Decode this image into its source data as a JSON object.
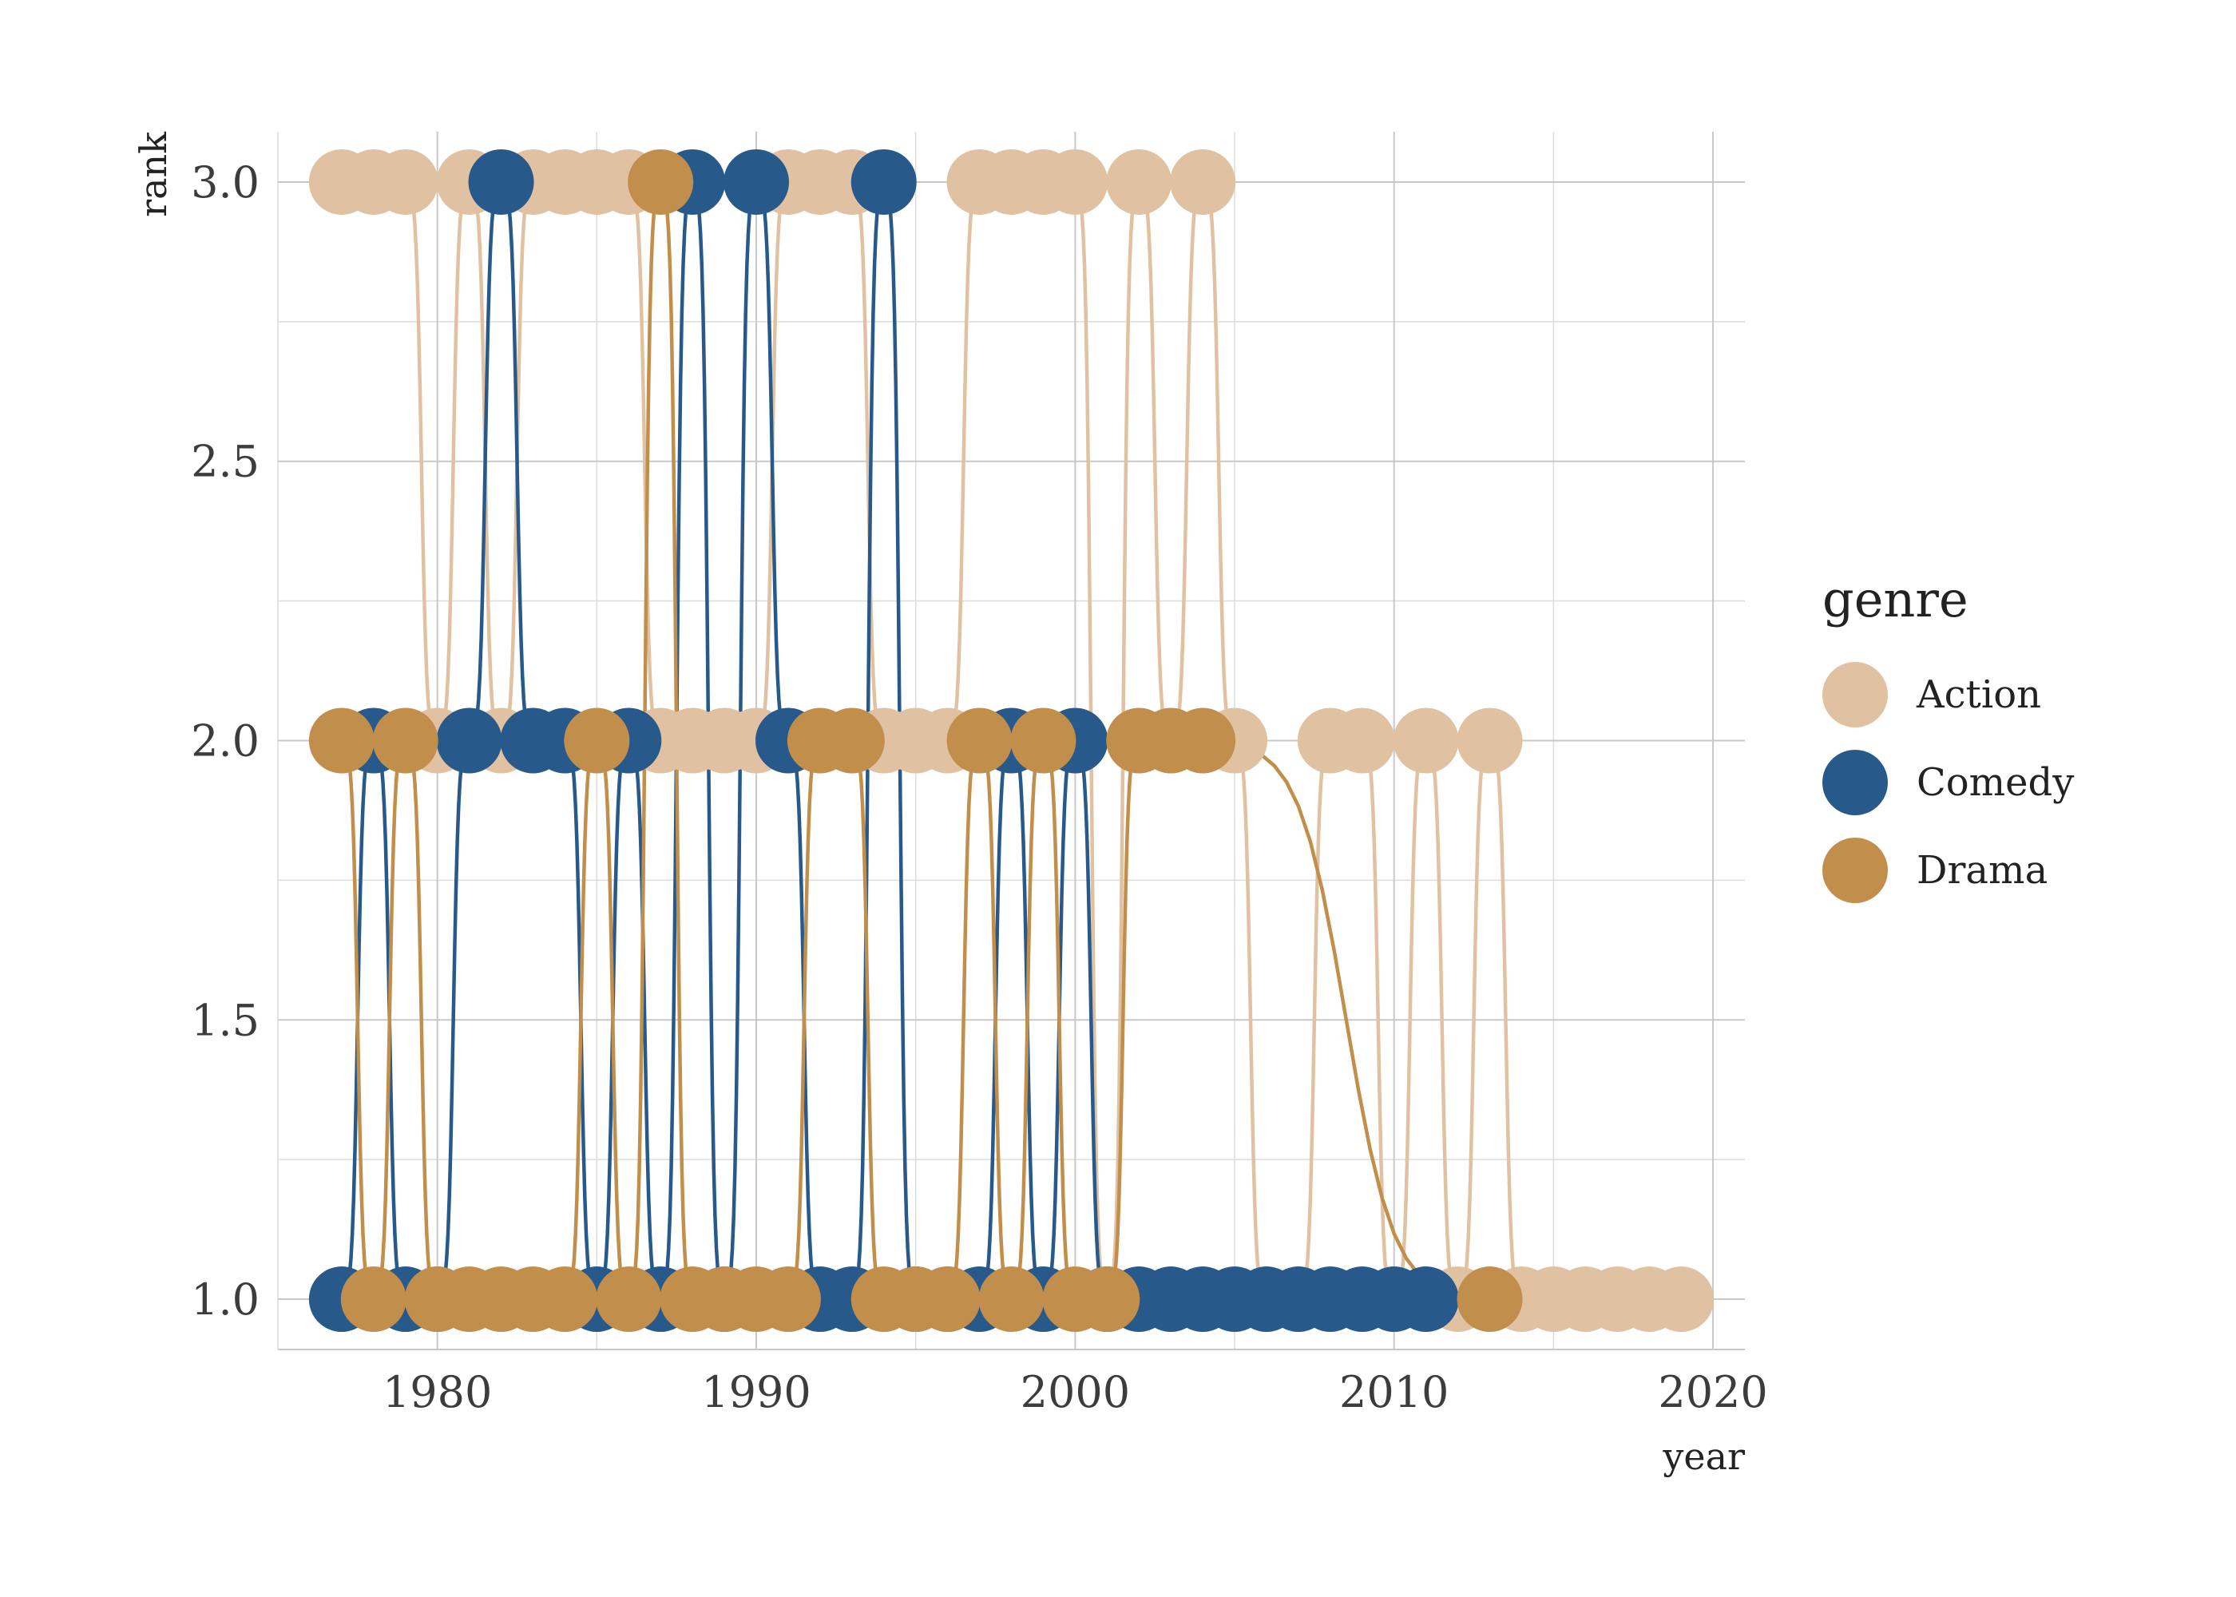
{
  "chart_data": {
    "type": "line",
    "xlabel": "year",
    "ylabel": "rank",
    "xlim": [
      1975,
      2021
    ],
    "ylim": [
      0.91,
      3.09
    ],
    "x_ticks": [
      1980,
      1990,
      2000,
      2010,
      2020
    ],
    "y_ticks": [
      1.0,
      1.5,
      2.0,
      2.5,
      3.0
    ],
    "x_tick_labels": [
      "1980",
      "1990",
      "2000",
      "2010",
      "2020"
    ],
    "y_tick_labels": [
      "1.0",
      "1.5",
      "2.0",
      "2.5",
      "3.0"
    ],
    "grid": true,
    "legend": {
      "title": "genre",
      "position": "right"
    },
    "series": [
      {
        "name": "Action",
        "color": "#e0c2a2",
        "points": [
          [
            1977,
            3
          ],
          [
            1978,
            3
          ],
          [
            1979,
            3
          ],
          [
            1980,
            2
          ],
          [
            1981,
            3
          ],
          [
            1982,
            2
          ],
          [
            1983,
            3
          ],
          [
            1984,
            3
          ],
          [
            1985,
            3
          ],
          [
            1986,
            3
          ],
          [
            1987,
            2
          ],
          [
            1988,
            2
          ],
          [
            1989,
            2
          ],
          [
            1990,
            2
          ],
          [
            1991,
            3
          ],
          [
            1992,
            3
          ],
          [
            1993,
            3
          ],
          [
            1994,
            2
          ],
          [
            1995,
            2
          ],
          [
            1996,
            2
          ],
          [
            1997,
            3
          ],
          [
            1998,
            3
          ],
          [
            1999,
            3
          ],
          [
            2000,
            3
          ],
          [
            2001,
            1
          ],
          [
            2002,
            3
          ],
          [
            2003,
            2
          ],
          [
            2004,
            3
          ],
          [
            2005,
            2
          ],
          [
            2006,
            1
          ],
          [
            2007,
            1
          ],
          [
            2008,
            2
          ],
          [
            2009,
            2
          ],
          [
            2010,
            1
          ],
          [
            2011,
            2
          ],
          [
            2012,
            1
          ],
          [
            2013,
            2
          ],
          [
            2014,
            1
          ],
          [
            2015,
            1
          ],
          [
            2016,
            1
          ],
          [
            2017,
            1
          ],
          [
            2018,
            1
          ],
          [
            2019,
            1
          ]
        ]
      },
      {
        "name": "Comedy",
        "color": "#27598a",
        "points": [
          [
            1977,
            1
          ],
          [
            1978,
            2
          ],
          [
            1979,
            1
          ],
          [
            1980,
            1
          ],
          [
            1981,
            2
          ],
          [
            1982,
            3
          ],
          [
            1983,
            2
          ],
          [
            1984,
            2
          ],
          [
            1985,
            1
          ],
          [
            1986,
            2
          ],
          [
            1987,
            1
          ],
          [
            1988,
            3
          ],
          [
            1989,
            1
          ],
          [
            1990,
            3
          ],
          [
            1991,
            2
          ],
          [
            1992,
            1
          ],
          [
            1993,
            1
          ],
          [
            1994,
            3
          ],
          [
            1995,
            1
          ],
          [
            1996,
            1
          ],
          [
            1997,
            1
          ],
          [
            1998,
            2
          ],
          [
            1999,
            1
          ],
          [
            2000,
            2
          ],
          [
            2001,
            1
          ],
          [
            2002,
            1
          ],
          [
            2003,
            1
          ],
          [
            2004,
            1
          ],
          [
            2005,
            1
          ],
          [
            2006,
            1
          ],
          [
            2007,
            1
          ],
          [
            2008,
            1
          ],
          [
            2009,
            1
          ],
          [
            2010,
            1
          ],
          [
            2011,
            1
          ]
        ]
      },
      {
        "name": "Drama",
        "color": "#c28e4c",
        "points": [
          [
            1977,
            2
          ],
          [
            1978,
            1
          ],
          [
            1979,
            2
          ],
          [
            1980,
            1
          ],
          [
            1981,
            1
          ],
          [
            1982,
            1
          ],
          [
            1983,
            1
          ],
          [
            1984,
            1
          ],
          [
            1985,
            2
          ],
          [
            1986,
            1
          ],
          [
            1987,
            3
          ],
          [
            1988,
            1
          ],
          [
            1989,
            1
          ],
          [
            1990,
            1
          ],
          [
            1991,
            1
          ],
          [
            1992,
            2
          ],
          [
            1993,
            2
          ],
          [
            1994,
            1
          ],
          [
            1995,
            1
          ],
          [
            1996,
            1
          ],
          [
            1997,
            2
          ],
          [
            1998,
            1
          ],
          [
            1999,
            2
          ],
          [
            2000,
            1
          ],
          [
            2001,
            1
          ],
          [
            2002,
            2
          ],
          [
            2003,
            2
          ],
          [
            2004,
            2
          ],
          [
            2013,
            1
          ]
        ]
      }
    ]
  }
}
